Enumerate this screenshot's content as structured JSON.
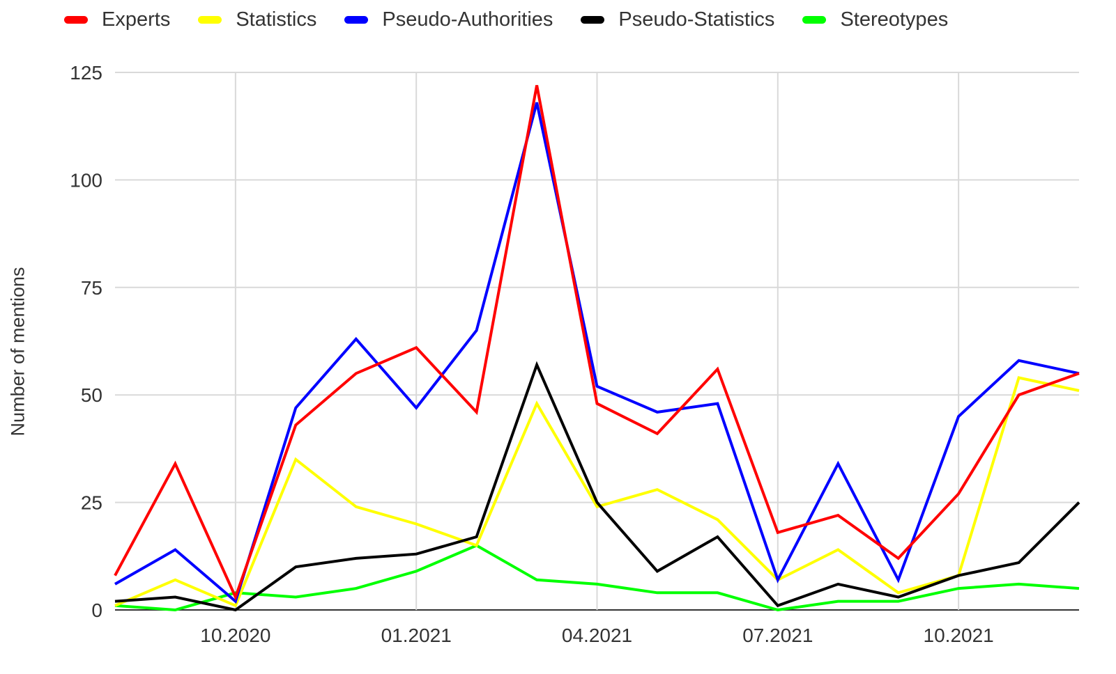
{
  "chart_data": {
    "type": "line",
    "xlabel": "",
    "ylabel": "Number of mentions",
    "ylim": [
      0,
      125
    ],
    "yticks": [
      0,
      25,
      50,
      75,
      100,
      125
    ],
    "x": [
      "2020-08",
      "2020-09",
      "2020-10",
      "2020-11",
      "2020-12",
      "2021-01",
      "2021-02",
      "2021-03",
      "2021-04",
      "2021-05",
      "2021-06",
      "2021-07",
      "2021-08",
      "2021-09",
      "2021-10",
      "2021-11",
      "2021-12"
    ],
    "xticks": [
      {
        "index": 2,
        "label": "10.2020"
      },
      {
        "index": 5,
        "label": "01.2021"
      },
      {
        "index": 8,
        "label": "04.2021"
      },
      {
        "index": 11,
        "label": "07.2021"
      },
      {
        "index": 14,
        "label": "10.2021"
      }
    ],
    "grid": true,
    "legend_position": "top",
    "series": [
      {
        "name": "Experts",
        "color": "#ff0000",
        "values": [
          8,
          34,
          3,
          43,
          55,
          61,
          46,
          122,
          48,
          41,
          56,
          18,
          22,
          12,
          27,
          50,
          55
        ]
      },
      {
        "name": "Statistics",
        "color": "#ffff00",
        "values": [
          1,
          7,
          1,
          35,
          24,
          20,
          15,
          48,
          24,
          28,
          21,
          7,
          14,
          4,
          8,
          54,
          51
        ]
      },
      {
        "name": "Pseudo-Authorities",
        "color": "#0000ff",
        "values": [
          6,
          14,
          2,
          47,
          63,
          47,
          65,
          118,
          52,
          46,
          48,
          7,
          34,
          7,
          45,
          58,
          55
        ]
      },
      {
        "name": "Pseudo-Statistics",
        "color": "#000000",
        "values": [
          2,
          3,
          0,
          10,
          12,
          13,
          17,
          57,
          25,
          9,
          17,
          1,
          6,
          3,
          8,
          11,
          25
        ]
      },
      {
        "name": "Stereotypes",
        "color": "#00ff00",
        "values": [
          1,
          0,
          4,
          3,
          5,
          9,
          15,
          7,
          6,
          4,
          4,
          0,
          2,
          2,
          5,
          6,
          5
        ]
      }
    ]
  }
}
